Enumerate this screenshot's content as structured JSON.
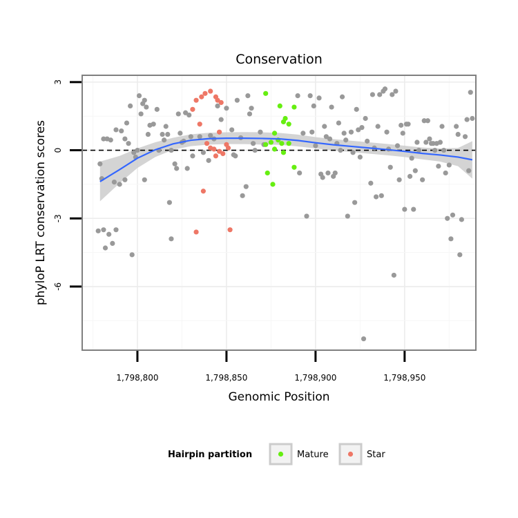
{
  "chart_data": {
    "type": "scatter",
    "title": "Conservation",
    "xlabel": "Genomic Position",
    "ylabel": "phyloP LRT conservation scores",
    "xlim": [
      1798769,
      1798990
    ],
    "ylim": [
      -8.8,
      3.3
    ],
    "x_ticks": [
      1798800,
      1798850,
      1798900,
      1798950
    ],
    "x_tick_labels": [
      "1,798,800",
      "1,798,850",
      "1,798,900",
      "1,798,950"
    ],
    "y_ticks": [
      3,
      0,
      -3,
      -6
    ],
    "y_tick_labels": [
      "3",
      "0",
      "-3",
      "-6"
    ],
    "reference_line": {
      "y": 0,
      "style": "dashed",
      "color": "#000000"
    },
    "grid": true,
    "legend": {
      "title": "Hairpin partition",
      "position": "bottom",
      "entries": [
        {
          "label": "Mature",
          "color": "#66ee11"
        },
        {
          "label": "Star",
          "color": "#ee7766"
        }
      ]
    },
    "colors": {
      "other": "#999999",
      "mature": "#66ee11",
      "star": "#ee7766",
      "smooth": "#3366ff",
      "band": "#cccccc"
    },
    "smooth": [
      {
        "x": 1798779,
        "y": -1.38,
        "lo": -2.25,
        "hi": -0.5
      },
      {
        "x": 1798790,
        "y": -0.85,
        "lo": -1.45,
        "hi": -0.25
      },
      {
        "x": 1798800,
        "y": -0.35,
        "lo": -0.78,
        "hi": 0.08
      },
      {
        "x": 1798810,
        "y": 0.02,
        "lo": -0.3,
        "hi": 0.35
      },
      {
        "x": 1798820,
        "y": 0.28,
        "lo": 0.02,
        "hi": 0.55
      },
      {
        "x": 1798830,
        "y": 0.44,
        "lo": 0.18,
        "hi": 0.7
      },
      {
        "x": 1798840,
        "y": 0.51,
        "lo": 0.25,
        "hi": 0.77
      },
      {
        "x": 1798850,
        "y": 0.53,
        "lo": 0.27,
        "hi": 0.79
      },
      {
        "x": 1798860,
        "y": 0.53,
        "lo": 0.27,
        "hi": 0.8
      },
      {
        "x": 1798870,
        "y": 0.52,
        "lo": 0.25,
        "hi": 0.79
      },
      {
        "x": 1798880,
        "y": 0.5,
        "lo": 0.24,
        "hi": 0.76
      },
      {
        "x": 1798890,
        "y": 0.43,
        "lo": 0.17,
        "hi": 0.69
      },
      {
        "x": 1798900,
        "y": 0.33,
        "lo": 0.08,
        "hi": 0.58
      },
      {
        "x": 1798910,
        "y": 0.24,
        "lo": -0.01,
        "hi": 0.49
      },
      {
        "x": 1798920,
        "y": 0.17,
        "lo": -0.08,
        "hi": 0.42
      },
      {
        "x": 1798930,
        "y": 0.1,
        "lo": -0.15,
        "hi": 0.35
      },
      {
        "x": 1798940,
        "y": 0.03,
        "lo": -0.22,
        "hi": 0.28
      },
      {
        "x": 1798950,
        "y": -0.05,
        "lo": -0.3,
        "hi": 0.2
      },
      {
        "x": 1798960,
        "y": -0.14,
        "lo": -0.4,
        "hi": 0.12
      },
      {
        "x": 1798970,
        "y": -0.21,
        "lo": -0.5,
        "hi": 0.08
      },
      {
        "x": 1798980,
        "y": -0.3,
        "lo": -0.7,
        "hi": 0.1
      },
      {
        "x": 1798988,
        "y": -0.42,
        "lo": -1.25,
        "hi": 0.4
      }
    ],
    "series": [
      {
        "name": "Mature",
        "color": "#66ee11",
        "points": [
          [
            1798872,
            2.5
          ],
          [
            1798880,
            1.95
          ],
          [
            1798883,
            1.4
          ],
          [
            1798882,
            1.25
          ],
          [
            1798885,
            1.15
          ],
          [
            1798888,
            1.9
          ],
          [
            1798877,
            0.75
          ],
          [
            1798879,
            0.45
          ],
          [
            1798875,
            0.35
          ],
          [
            1798872,
            0.25
          ],
          [
            1798881,
            0.3
          ],
          [
            1798885,
            0.3
          ],
          [
            1798877,
            0.05
          ],
          [
            1798882,
            -0.1
          ],
          [
            1798888,
            -0.75
          ],
          [
            1798873,
            -1.0
          ],
          [
            1798876,
            -1.5
          ]
        ]
      },
      {
        "name": "Star",
        "color": "#ee7766",
        "points": [
          [
            1798838,
            2.5
          ],
          [
            1798841,
            2.6
          ],
          [
            1798836,
            2.35
          ],
          [
            1798833,
            2.2
          ],
          [
            1798844,
            2.35
          ],
          [
            1798845,
            2.2
          ],
          [
            1798847,
            2.1
          ],
          [
            1798831,
            1.8
          ],
          [
            1798835,
            1.15
          ],
          [
            1798846,
            0.8
          ],
          [
            1798839,
            0.3
          ],
          [
            1798841,
            0.1
          ],
          [
            1798843,
            0.05
          ],
          [
            1798846,
            -0.05
          ],
          [
            1798848,
            -0.15
          ],
          [
            1798850,
            0.25
          ],
          [
            1798851,
            0.1
          ],
          [
            1798844,
            -0.25
          ],
          [
            1798837,
            -1.8
          ],
          [
            1798833,
            -3.6
          ],
          [
            1798852,
            -3.5
          ]
        ]
      },
      {
        "name": "",
        "color": "#999999",
        "points": [
          [
            1798779,
            -0.6
          ],
          [
            1798781,
            0.5
          ],
          [
            1798783,
            0.5
          ],
          [
            1798785,
            0.45
          ],
          [
            1798788,
            0.9
          ],
          [
            1798791,
            0.85
          ],
          [
            1798793,
            0.5
          ],
          [
            1798794,
            1.2
          ],
          [
            1798795,
            0.3
          ],
          [
            1798796,
            1.95
          ],
          [
            1798798,
            -0.1
          ],
          [
            1798799,
            -0.3
          ],
          [
            1798800,
            0.0
          ],
          [
            1798801,
            2.4
          ],
          [
            1798802,
            1.6
          ],
          [
            1798803,
            2.05
          ],
          [
            1798804,
            2.2
          ],
          [
            1798805,
            1.9
          ],
          [
            1798806,
            0.7
          ],
          [
            1798807,
            1.1
          ],
          [
            1798809,
            1.15
          ],
          [
            1798811,
            1.8
          ],
          [
            1798812,
            0.0
          ],
          [
            1798814,
            0.7
          ],
          [
            1798815,
            0.45
          ],
          [
            1798816,
            1.05
          ],
          [
            1798817,
            0.7
          ],
          [
            1798819,
            0.0
          ],
          [
            1798821,
            -0.6
          ],
          [
            1798822,
            -0.8
          ],
          [
            1798823,
            1.6
          ],
          [
            1798824,
            0.75
          ],
          [
            1798825,
            0.35
          ],
          [
            1798826,
            0.4
          ],
          [
            1798827,
            1.65
          ],
          [
            1798828,
            -0.8
          ],
          [
            1798829,
            1.55
          ],
          [
            1798830,
            0.6
          ],
          [
            1798831,
            -0.25
          ],
          [
            1798835,
            0.6
          ],
          [
            1798837,
            -0.1
          ],
          [
            1798840,
            -0.45
          ],
          [
            1798841,
            0.65
          ],
          [
            1798843,
            0.5
          ],
          [
            1798845,
            1.95
          ],
          [
            1798847,
            1.35
          ],
          [
            1798850,
            1.85
          ],
          [
            1798853,
            0.9
          ],
          [
            1798854,
            -0.2
          ],
          [
            1798855,
            -0.25
          ],
          [
            1798856,
            2.2
          ],
          [
            1798858,
            0.55
          ],
          [
            1798859,
            -2.0
          ],
          [
            1798861,
            -1.6
          ],
          [
            1798862,
            2.4
          ],
          [
            1798863,
            1.6
          ],
          [
            1798864,
            1.85
          ],
          [
            1798865,
            0.3
          ],
          [
            1798866,
            0.0
          ],
          [
            1798869,
            0.8
          ],
          [
            1798871,
            0.25
          ],
          [
            1798890,
            2.4
          ],
          [
            1798891,
            -1.0
          ],
          [
            1798893,
            0.75
          ],
          [
            1798895,
            -2.9
          ],
          [
            1798897,
            2.4
          ],
          [
            1798898,
            0.8
          ],
          [
            1798899,
            1.95
          ],
          [
            1798900,
            0.2
          ],
          [
            1798902,
            2.3
          ],
          [
            1798903,
            -1.05
          ],
          [
            1798904,
            -1.2
          ],
          [
            1798905,
            1.05
          ],
          [
            1798906,
            0.6
          ],
          [
            1798907,
            -1.0
          ],
          [
            1798908,
            0.5
          ],
          [
            1798909,
            1.9
          ],
          [
            1798910,
            -1.15
          ],
          [
            1798911,
            -1.0
          ],
          [
            1798912,
            0.3
          ],
          [
            1798913,
            1.2
          ],
          [
            1798914,
            0.0
          ],
          [
            1798915,
            2.35
          ],
          [
            1798916,
            0.75
          ],
          [
            1798917,
            0.45
          ],
          [
            1798918,
            -2.9
          ],
          [
            1798920,
            0.8
          ],
          [
            1798921,
            -0.1
          ],
          [
            1798922,
            -2.3
          ],
          [
            1798923,
            1.8
          ],
          [
            1798924,
            0.9
          ],
          [
            1798925,
            -0.3
          ],
          [
            1798926,
            1.0
          ],
          [
            1798927,
            -8.3
          ],
          [
            1798928,
            1.4
          ],
          [
            1798929,
            0.4
          ],
          [
            1798931,
            -1.45
          ],
          [
            1798932,
            2.45
          ],
          [
            1798933,
            0.1
          ],
          [
            1798934,
            -2.05
          ],
          [
            1798935,
            1.05
          ],
          [
            1798936,
            2.45
          ],
          [
            1798937,
            -2.0
          ],
          [
            1798938,
            2.6
          ],
          [
            1798939,
            2.7
          ],
          [
            1798940,
            0.8
          ],
          [
            1798941,
            0.05
          ],
          [
            1798942,
            -0.75
          ],
          [
            1798943,
            2.45
          ],
          [
            1798944,
            -5.5
          ],
          [
            1798945,
            2.6
          ],
          [
            1798946,
            0.2
          ],
          [
            1798947,
            -1.3
          ],
          [
            1798948,
            1.1
          ],
          [
            1798949,
            0.75
          ],
          [
            1798950,
            -2.6
          ],
          [
            1798951,
            1.15
          ],
          [
            1798952,
            1.15
          ],
          [
            1798953,
            -1.15
          ],
          [
            1798954,
            -0.35
          ],
          [
            1798955,
            -2.6
          ],
          [
            1798956,
            -0.9
          ],
          [
            1798957,
            0.35
          ],
          [
            1798958,
            0.0
          ],
          [
            1798960,
            -1.3
          ],
          [
            1798961,
            1.3
          ],
          [
            1798962,
            0.35
          ],
          [
            1798963,
            1.3
          ],
          [
            1798964,
            0.5
          ],
          [
            1798965,
            0.3
          ],
          [
            1798966,
            0.3
          ],
          [
            1798967,
            0.0
          ],
          [
            1798968,
            0.3
          ],
          [
            1798969,
            -0.7
          ],
          [
            1798970,
            0.35
          ],
          [
            1798971,
            1.05
          ],
          [
            1798972,
            0.0
          ],
          [
            1798973,
            -1.0
          ],
          [
            1798974,
            -3.0
          ],
          [
            1798975,
            -0.65
          ],
          [
            1798976,
            -3.9
          ],
          [
            1798977,
            -2.85
          ],
          [
            1798979,
            1.05
          ],
          [
            1798980,
            0.7
          ],
          [
            1798981,
            -4.6
          ],
          [
            1798982,
            -3.05
          ],
          [
            1798984,
            0.6
          ],
          [
            1798985,
            1.35
          ],
          [
            1798986,
            -0.9
          ],
          [
            1798987,
            2.55
          ],
          [
            1798988,
            1.4
          ],
          [
            1798778,
            -3.55
          ],
          [
            1798781,
            -3.5
          ],
          [
            1798784,
            -3.7
          ],
          [
            1798786,
            -4.1
          ],
          [
            1798788,
            -3.5
          ],
          [
            1798782,
            -4.3
          ],
          [
            1798797,
            -4.6
          ],
          [
            1798819,
            -3.9
          ],
          [
            1798818,
            -2.3
          ],
          [
            1798790,
            -1.5
          ],
          [
            1798793,
            -1.3
          ],
          [
            1798804,
            -1.3
          ],
          [
            1798787,
            -1.4
          ],
          [
            1798780,
            -1.25
          ]
        ]
      }
    ]
  }
}
